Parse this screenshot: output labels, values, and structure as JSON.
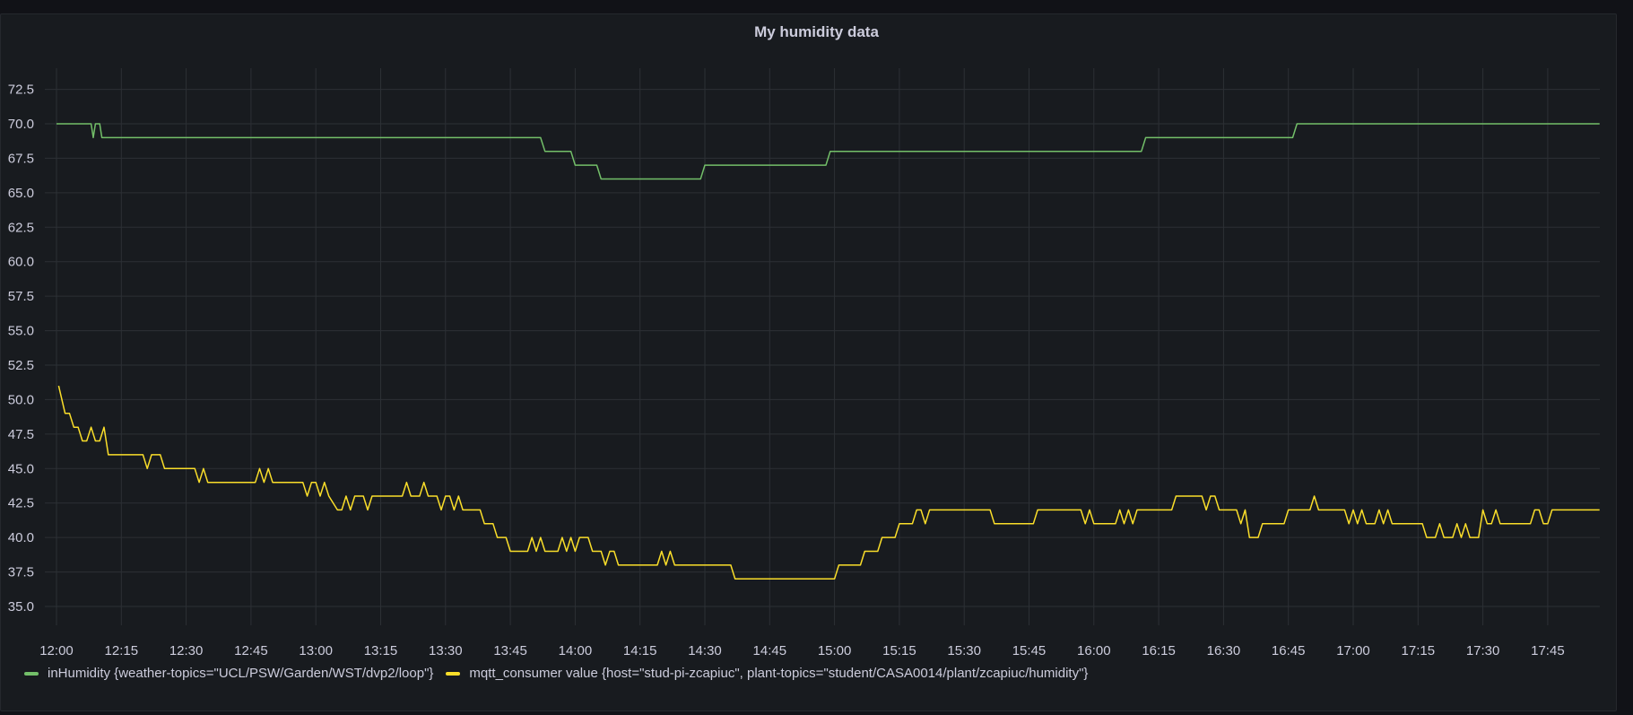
{
  "panel": {
    "title": "My humidity data"
  },
  "chart_data": {
    "type": "line",
    "title": "My humidity data",
    "xlabel": "",
    "ylabel": "",
    "xlim_minutes": [
      0,
      357
    ],
    "ylim": [
      33,
      74.5
    ],
    "grid": true,
    "legend_position": "bottom-left",
    "yticks": [
      35.0,
      37.5,
      40.0,
      42.5,
      45.0,
      47.5,
      50.0,
      52.5,
      55.0,
      57.5,
      60.0,
      62.5,
      65.0,
      67.5,
      70.0,
      72.5
    ],
    "ytick_labels": [
      "35.0",
      "37.5",
      "40.0",
      "42.5",
      "45.0",
      "47.5",
      "50.0",
      "52.5",
      "55.0",
      "57.5",
      "60.0",
      "62.5",
      "65.0",
      "67.5",
      "70.0",
      "72.5"
    ],
    "xtick_minutes": [
      0,
      15,
      30,
      45,
      60,
      75,
      90,
      105,
      120,
      135,
      150,
      165,
      180,
      195,
      210,
      225,
      240,
      255,
      270,
      285,
      300,
      315,
      330,
      345
    ],
    "xtick_labels": [
      "12:00",
      "12:15",
      "12:30",
      "12:45",
      "13:00",
      "13:15",
      "13:30",
      "13:45",
      "14:00",
      "14:15",
      "14:30",
      "14:45",
      "15:00",
      "15:15",
      "15:30",
      "15:45",
      "16:00",
      "16:15",
      "16:30",
      "16:45",
      "17:00",
      "17:15",
      "17:30",
      "17:45"
    ],
    "series": [
      {
        "name": "inHumidity {weather-topics=\"UCL/PSW/Garden/WST/dvp2/loop\"}",
        "color": "#73bf69",
        "points": [
          [
            0,
            70
          ],
          [
            8,
            70
          ],
          [
            8.5,
            69
          ],
          [
            9,
            70
          ],
          [
            10,
            70
          ],
          [
            10.5,
            69
          ],
          [
            112,
            69
          ],
          [
            113,
            68
          ],
          [
            119,
            68
          ],
          [
            120,
            67
          ],
          [
            125,
            67
          ],
          [
            126,
            66
          ],
          [
            149,
            66
          ],
          [
            150,
            67
          ],
          [
            178,
            67
          ],
          [
            179,
            68
          ],
          [
            251,
            68
          ],
          [
            252,
            69
          ],
          [
            286,
            69
          ],
          [
            287,
            70
          ],
          [
            357,
            70
          ]
        ]
      },
      {
        "name": "mqtt_consumer value {host=\"stud-pi-zcapiuc\", plant-topics=\"student/CASA0014/plant/zcapiuc/humidity\"}",
        "color": "#fade2a",
        "points": [
          [
            0.5,
            51
          ],
          [
            2,
            49
          ],
          [
            3,
            49
          ],
          [
            4,
            48
          ],
          [
            5,
            48
          ],
          [
            6,
            47
          ],
          [
            7,
            47
          ],
          [
            8,
            48
          ],
          [
            9,
            47
          ],
          [
            10,
            47
          ],
          [
            11,
            48
          ],
          [
            12,
            46
          ],
          [
            20,
            46
          ],
          [
            21,
            45
          ],
          [
            22,
            46
          ],
          [
            24,
            46
          ],
          [
            25,
            45
          ],
          [
            32,
            45
          ],
          [
            33,
            44
          ],
          [
            34,
            45
          ],
          [
            35,
            44
          ],
          [
            46,
            44
          ],
          [
            47,
            45
          ],
          [
            48,
            44
          ],
          [
            49,
            45
          ],
          [
            50,
            44
          ],
          [
            57,
            44
          ],
          [
            58,
            43
          ],
          [
            59,
            44
          ],
          [
            60,
            44
          ],
          [
            61,
            43
          ],
          [
            62,
            44
          ],
          [
            63,
            43
          ],
          [
            65,
            42
          ],
          [
            66,
            42
          ],
          [
            67,
            43
          ],
          [
            68,
            42
          ],
          [
            69,
            43
          ],
          [
            71,
            43
          ],
          [
            72,
            42
          ],
          [
            73,
            43
          ],
          [
            80,
            43
          ],
          [
            81,
            44
          ],
          [
            82,
            43
          ],
          [
            84,
            43
          ],
          [
            85,
            44
          ],
          [
            86,
            43
          ],
          [
            88,
            43
          ],
          [
            89,
            42
          ],
          [
            90,
            43
          ],
          [
            91,
            43
          ],
          [
            92,
            42
          ],
          [
            93,
            43
          ],
          [
            94,
            42
          ],
          [
            98,
            42
          ],
          [
            99,
            41
          ],
          [
            101,
            41
          ],
          [
            102,
            40
          ],
          [
            104,
            40
          ],
          [
            105,
            39
          ],
          [
            109,
            39
          ],
          [
            110,
            40
          ],
          [
            111,
            39
          ],
          [
            112,
            40
          ],
          [
            113,
            39
          ],
          [
            116,
            39
          ],
          [
            117,
            40
          ],
          [
            118,
            39
          ],
          [
            119,
            40
          ],
          [
            120,
            39
          ],
          [
            121,
            40
          ],
          [
            123,
            40
          ],
          [
            124,
            39
          ],
          [
            126,
            39
          ],
          [
            127,
            38
          ],
          [
            128,
            39
          ],
          [
            129,
            39
          ],
          [
            130,
            38
          ],
          [
            139,
            38
          ],
          [
            140,
            39
          ],
          [
            141,
            38
          ],
          [
            142,
            39
          ],
          [
            143,
            38
          ],
          [
            150,
            38
          ],
          [
            156,
            38
          ],
          [
            157,
            37
          ],
          [
            173,
            37
          ],
          [
            180,
            37
          ],
          [
            181,
            38
          ],
          [
            186,
            38
          ],
          [
            187,
            39
          ],
          [
            190,
            39
          ],
          [
            191,
            40
          ],
          [
            194,
            40
          ],
          [
            195,
            41
          ],
          [
            198,
            41
          ],
          [
            199,
            42
          ],
          [
            200,
            42
          ],
          [
            201,
            41
          ],
          [
            202,
            42
          ],
          [
            210,
            42
          ],
          [
            216,
            42
          ],
          [
            217,
            41
          ],
          [
            226,
            41
          ],
          [
            227,
            42
          ],
          [
            237,
            42
          ],
          [
            238,
            41
          ],
          [
            239,
            42
          ],
          [
            240,
            41
          ],
          [
            245,
            41
          ],
          [
            246,
            42
          ],
          [
            247,
            41
          ],
          [
            248,
            42
          ],
          [
            249,
            41
          ],
          [
            250,
            42
          ],
          [
            258,
            42
          ],
          [
            259,
            43
          ],
          [
            265,
            43
          ],
          [
            266,
            42
          ],
          [
            267,
            43
          ],
          [
            268,
            43
          ],
          [
            269,
            42
          ],
          [
            273,
            42
          ],
          [
            274,
            41
          ],
          [
            275,
            42
          ],
          [
            276,
            40
          ],
          [
            278,
            40
          ],
          [
            279,
            41
          ],
          [
            284,
            41
          ],
          [
            285,
            42
          ],
          [
            290,
            42
          ],
          [
            291,
            43
          ],
          [
            292,
            42
          ],
          [
            298,
            42
          ],
          [
            299,
            41
          ],
          [
            300,
            42
          ],
          [
            301,
            41
          ],
          [
            302,
            42
          ],
          [
            303,
            41
          ],
          [
            305,
            41
          ],
          [
            306,
            42
          ],
          [
            307,
            41
          ],
          [
            308,
            42
          ],
          [
            309,
            41
          ],
          [
            316,
            41
          ],
          [
            317,
            40
          ],
          [
            319,
            40
          ],
          [
            320,
            41
          ],
          [
            321,
            40
          ],
          [
            323,
            40
          ],
          [
            324,
            41
          ],
          [
            325,
            40
          ],
          [
            326,
            41
          ],
          [
            327,
            40
          ],
          [
            329,
            40
          ],
          [
            330,
            42
          ],
          [
            331,
            41
          ],
          [
            332,
            41
          ],
          [
            333,
            42
          ],
          [
            334,
            41
          ],
          [
            341,
            41
          ],
          [
            342,
            42
          ],
          [
            343,
            42
          ],
          [
            344,
            41
          ],
          [
            345,
            41
          ],
          [
            346,
            42
          ],
          [
            357,
            42
          ]
        ]
      }
    ]
  }
}
